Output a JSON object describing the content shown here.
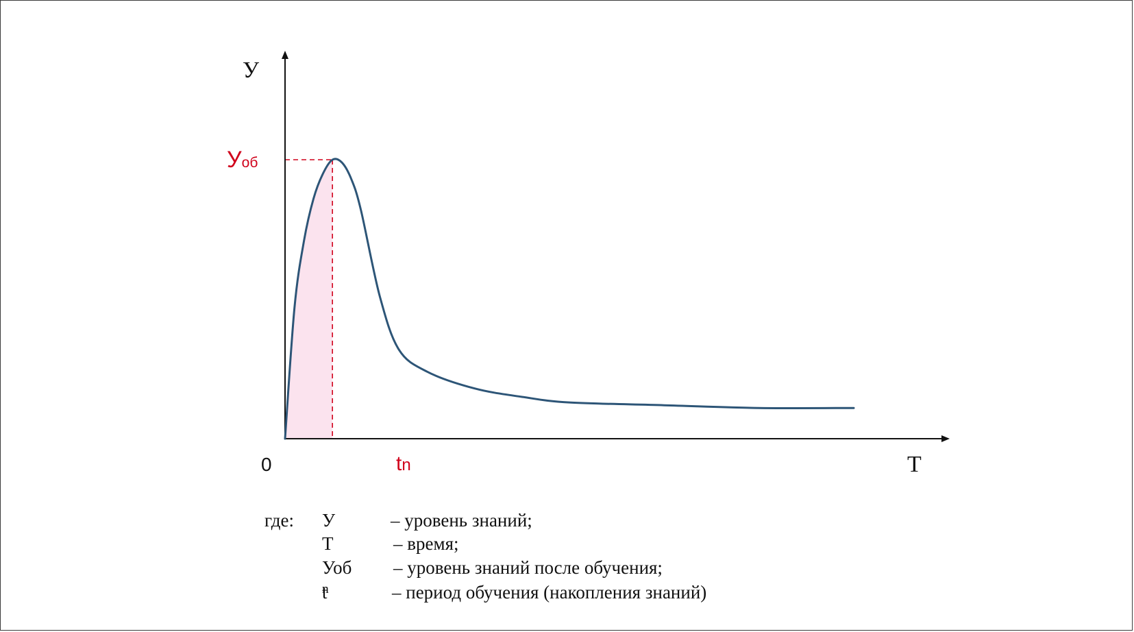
{
  "chart_data": {
    "type": "line",
    "y_axis_label": "У",
    "x_axis_label": "Т",
    "origin_label": "0",
    "peak_y_label": {
      "main": "У",
      "sub": "об"
    },
    "peak_x_label": {
      "main": "t",
      "sub": "n"
    },
    "series": [
      {
        "x": [
          0,
          1,
          2,
          3,
          4,
          5,
          6,
          7,
          8,
          10,
          12,
          15,
          20,
          25,
          30,
          40,
          50,
          60
        ],
        "values": [
          0,
          47,
          71,
          86,
          95,
          100,
          99,
          93,
          82,
          51,
          32,
          24,
          18,
          15,
          13,
          12,
          11,
          11
        ]
      }
    ],
    "peak": {
      "x": 5,
      "y": 100
    },
    "shaded_region": {
      "from": 0,
      "to": 5,
      "color": "#fbe3ee"
    },
    "colors": {
      "curve": "#2d5577",
      "accent": "#d0021b",
      "axes": "#111111"
    }
  },
  "legend": {
    "intro": "где:",
    "items": [
      {
        "symbol": "У",
        "symbol_sub": "",
        "text": "– уровень знаний;"
      },
      {
        "symbol": "Т",
        "symbol_sub": "",
        "text": "– время;"
      },
      {
        "symbol": "Уоб",
        "symbol_sub": "",
        "text": "– уровень знаний после обучения;"
      },
      {
        "symbol": "t",
        "symbol_sub": "n",
        "text": "– период обучения (накопления знаний)"
      }
    ]
  }
}
